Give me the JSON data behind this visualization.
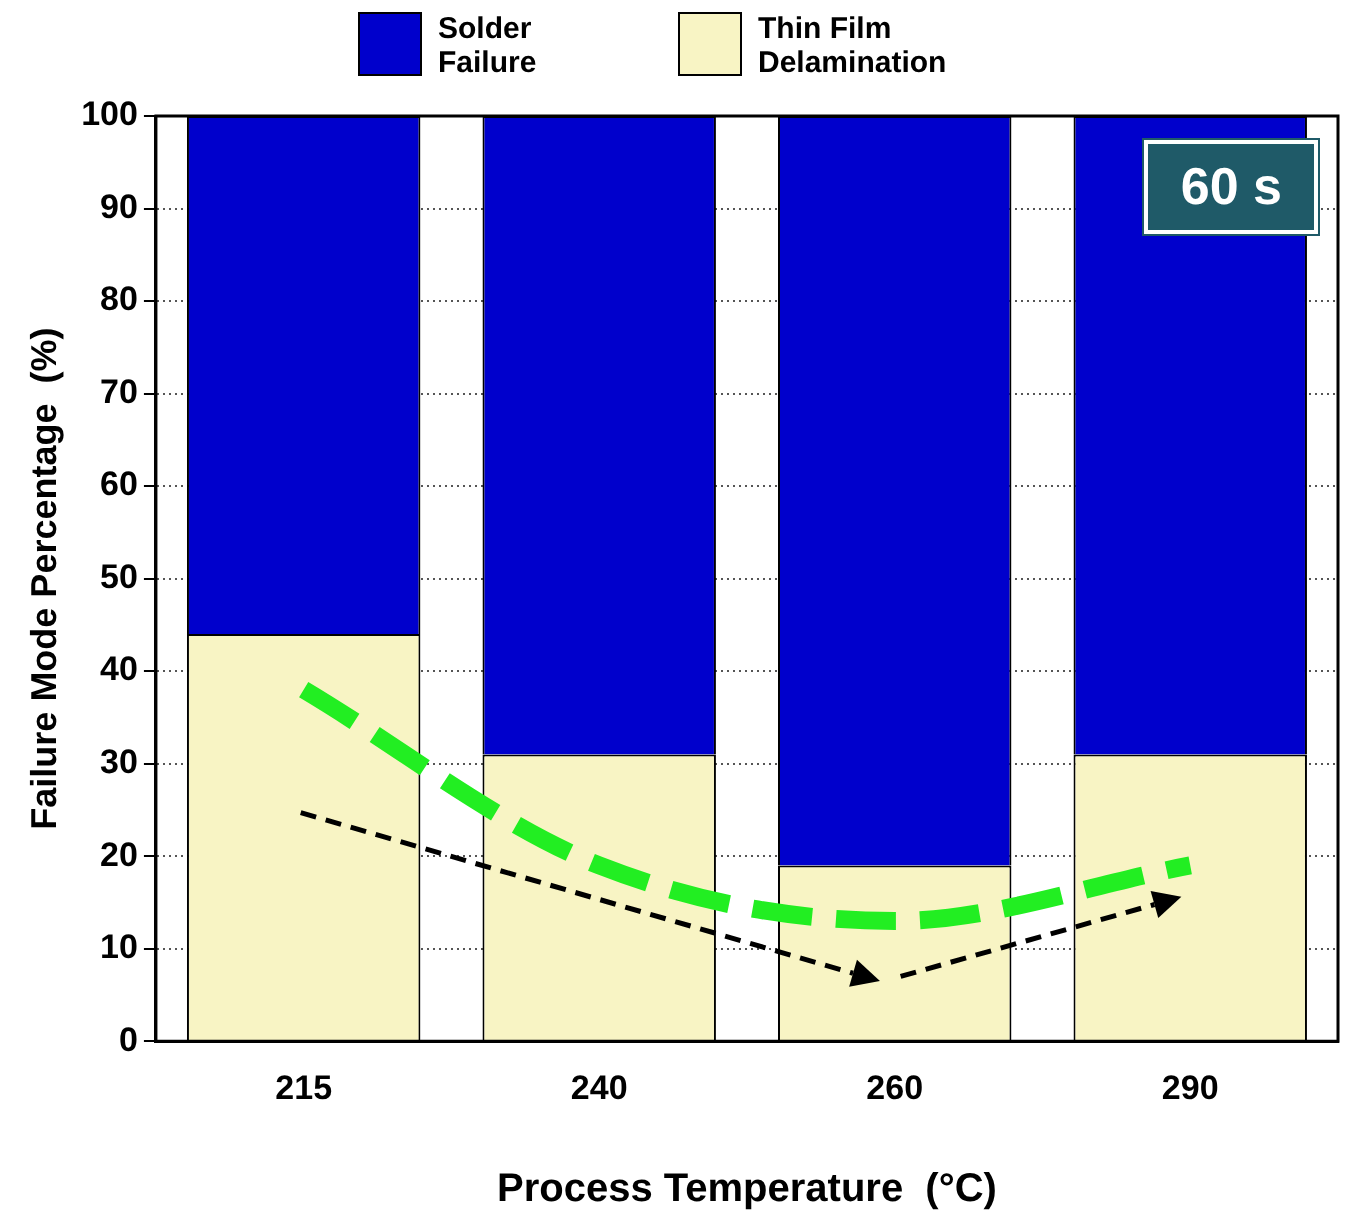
{
  "chart_data": {
    "type": "bar",
    "stacked": true,
    "xlabel": "Process Temperature  (°C)",
    "ylabel": "Failure Mode Percentage  (%)",
    "categories": [
      "215",
      "240",
      "260",
      "290"
    ],
    "series": [
      {
        "name": "Thin Film Delamination",
        "color": "#f8f4c4",
        "values": [
          44,
          31,
          19,
          31
        ]
      },
      {
        "name": "Solder Failure",
        "color": "#0000cc",
        "values": [
          56,
          69,
          81,
          69
        ]
      },
      {
        "type": "line",
        "color": "#22ee22",
        "line_style": "dashed",
        "values": [
          38,
          19,
          13,
          19
        ]
      }
    ],
    "ylim": [
      0,
      100
    ],
    "yticks": [
      0,
      10,
      20,
      30,
      40,
      50,
      60,
      70,
      80,
      90,
      100
    ],
    "grid": "y",
    "legend": "top",
    "annotations": [
      "60 s"
    ]
  }
}
